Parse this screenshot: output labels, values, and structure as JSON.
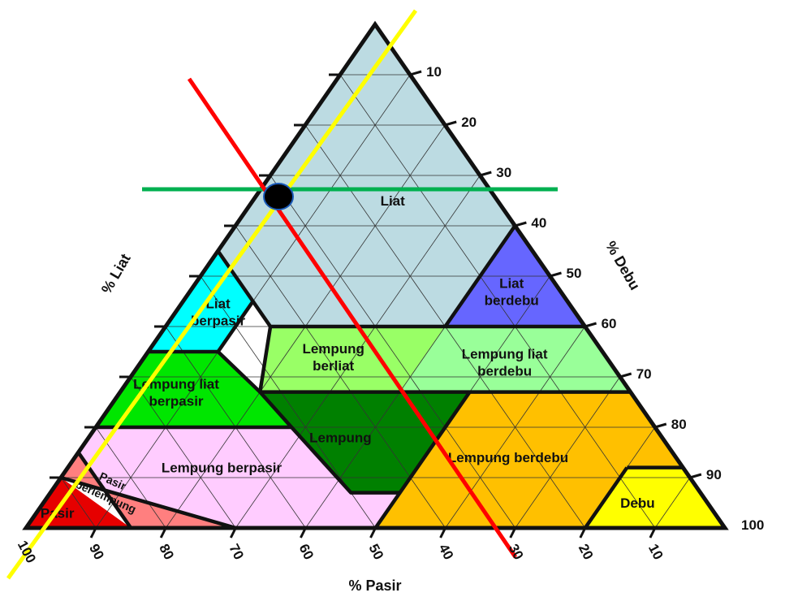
{
  "axes": {
    "clay_title": "% Liat",
    "silt_title": "% Debu",
    "sand_title": "% Pasir",
    "clay_ticks": [
      "10",
      "20",
      "30",
      "40",
      "50",
      "60",
      "70",
      "80",
      "90",
      "100"
    ],
    "silt_ticks": [
      "10",
      "20",
      "30",
      "40",
      "50",
      "60",
      "70",
      "80",
      "90",
      "100"
    ],
    "sand_ticks": [
      "100",
      "90",
      "80",
      "70",
      "60",
      "50",
      "40",
      "30",
      "20",
      "10"
    ]
  },
  "regions": [
    {
      "id": "liat",
      "lines": [
        "Liat"
      ],
      "color": "#bcdbe2"
    },
    {
      "id": "liat-berdebu",
      "lines": [
        "Liat",
        "berdebu"
      ],
      "color": "#6666ff"
    },
    {
      "id": "liat-berpasir",
      "lines": [
        "Liat",
        "berpasir"
      ],
      "color": "#00ffff"
    },
    {
      "id": "lempung-berliat",
      "lines": [
        "Lempung",
        "berliat"
      ],
      "color": "#99ff66"
    },
    {
      "id": "lempung-liat-berdebu",
      "lines": [
        "Lempung liat",
        "berdebu"
      ],
      "color": "#99ff99"
    },
    {
      "id": "lempung-liat-berpasir",
      "lines": [
        "Lempung liat",
        "berpasir"
      ],
      "color": "#00e600"
    },
    {
      "id": "lempung",
      "lines": [
        "Lempung"
      ],
      "color": "#008000"
    },
    {
      "id": "lempung-berpasir",
      "lines": [
        "Lempung berpasir"
      ],
      "color": "#ffccff"
    },
    {
      "id": "lempung-berdebu",
      "lines": [
        "Lempung berdebu"
      ],
      "color": "#ffc000"
    },
    {
      "id": "debu",
      "lines": [
        "Debu"
      ],
      "color": "#ffff00"
    },
    {
      "id": "pasir-berlempung",
      "lines": [
        "Pasir",
        "berlempung"
      ],
      "color": "#ff7f7f"
    },
    {
      "id": "pasir",
      "lines": [
        "Pasir"
      ],
      "color": "#e60000"
    }
  ],
  "overlays": [
    {
      "id": "green-clay-line",
      "color": "#00b050"
    },
    {
      "id": "red-sand-line",
      "color": "#ff0000"
    },
    {
      "id": "yellow-silt-line",
      "color": "#ffff00"
    },
    {
      "id": "intersection-point",
      "color": "#000000"
    }
  ]
}
